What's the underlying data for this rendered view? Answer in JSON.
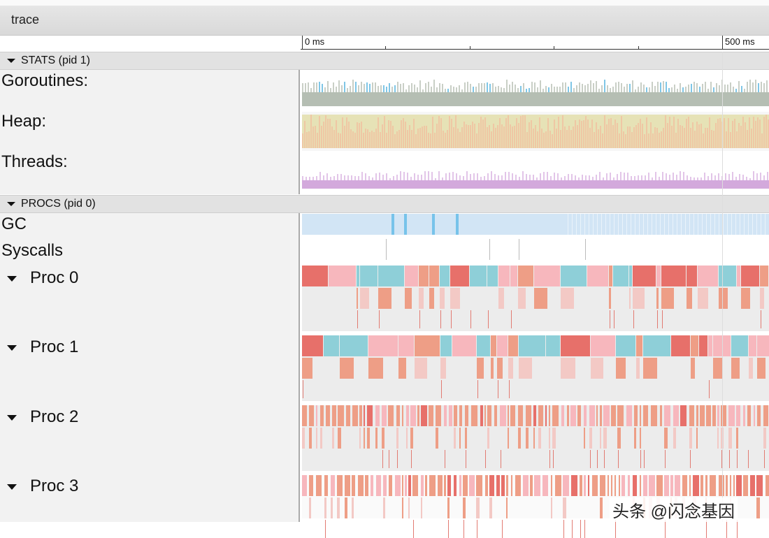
{
  "window": {
    "title": "trace"
  },
  "timeline": {
    "start_label": "0 ms",
    "end_label": "500 ms"
  },
  "sections": {
    "stats": {
      "label": "STATS (pid 1)"
    },
    "procs": {
      "label": "PROCS (pid 0)"
    }
  },
  "stats_rows": [
    "Goroutines:",
    "Heap:",
    "Threads:"
  ],
  "proc_rows": [
    "GC",
    "Syscalls"
  ],
  "procs": [
    "Proc 0",
    "Proc 1",
    "Proc 2",
    "Proc 3"
  ],
  "watermark": "头条 @闪念基因",
  "colors": {
    "goroutines": "#b5beb3",
    "goroutines_accent": "#7fc6e6",
    "heap": "#efc7a4",
    "heap_light": "#e6e2b6",
    "threads": "#d3a9dc",
    "gc": "#d2e5f5",
    "gc_accent": "#77c3ea",
    "teal": "#8ecfd8",
    "salmon": "#ee9e86",
    "pink": "#f7b7bd",
    "red": "#e7706a"
  }
}
